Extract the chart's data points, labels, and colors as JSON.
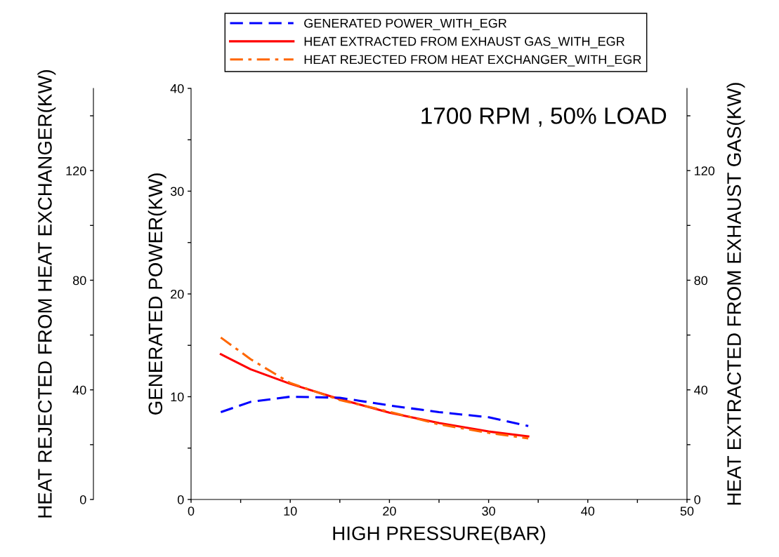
{
  "chart_data": {
    "type": "line",
    "xlabel": "HIGH PRESSURE(BAR)",
    "ylabel": "GENERATED POWER(KW)",
    "y2label": "HEAT EXTRACTED FROM EXHAUST GAS(KW)",
    "y3label": "HEAT REJECTED FROM HEAT EXCHANGER(KW)",
    "annotations": [
      "1700 RPM , 50% LOAD"
    ],
    "xlim": [
      0,
      50
    ],
    "xticks": [
      0,
      {
        "value": 5,
        "label": null
      },
      10,
      {
        "value": 15,
        "label": null
      },
      20,
      {
        "value": 25,
        "label": null
      },
      30,
      {
        "value": 35,
        "label": null
      },
      40,
      {
        "value": 45,
        "label": null
      },
      50
    ],
    "ylim": [
      0,
      40
    ],
    "yticks": [
      0,
      {
        "value": 5,
        "label": null
      },
      10,
      {
        "value": 15,
        "label": null
      },
      20,
      {
        "value": 25,
        "label": null
      },
      30,
      {
        "value": 35,
        "label": null
      },
      40
    ],
    "y2lim": [
      0,
      150
    ],
    "y2ticks": [
      0,
      {
        "value": 20,
        "label": null
      },
      40,
      {
        "value": 60,
        "label": null
      },
      80,
      {
        "value": 100,
        "label": null
      },
      120,
      {
        "value": 140,
        "label": null
      }
    ],
    "y3lim": [
      0,
      150
    ],
    "y3ticks": [
      0,
      {
        "value": 20,
        "label": null
      },
      40,
      {
        "value": 60,
        "label": null
      },
      80,
      {
        "value": 100,
        "label": null
      },
      120,
      {
        "value": 140,
        "label": null
      }
    ],
    "x": [
      3,
      6,
      10,
      15,
      20,
      25,
      30,
      34
    ],
    "legend": "top",
    "grid": false,
    "marker": "none",
    "series": [
      {
        "name": "GENERATED POWER_WITH_EGR",
        "color": "#0000ff",
        "line_style": "dashed",
        "values": [
          8.5,
          9.5,
          10.0,
          9.9,
          9.15,
          8.5,
          8.0,
          7.15
        ]
      },
      {
        "name": "HEAT EXTRACTED FROM EXHAUST GAS_WITH_EGR",
        "color": "#ff0000",
        "line_style": "solid",
        "axis": "y2",
        "values": [
          53,
          47.5,
          42.2,
          36.6,
          31.7,
          27.9,
          24.8,
          23.0
        ]
      },
      {
        "name": "HEAT REJECTED FROM HEAT EXCHANGER_WITH_EGR",
        "color": "#ff6600",
        "line_style": "dashdot",
        "axis": "y3",
        "values": [
          59.1,
          51.2,
          42.5,
          36.3,
          32.0,
          27.4,
          24.3,
          22.3
        ]
      }
    ]
  }
}
